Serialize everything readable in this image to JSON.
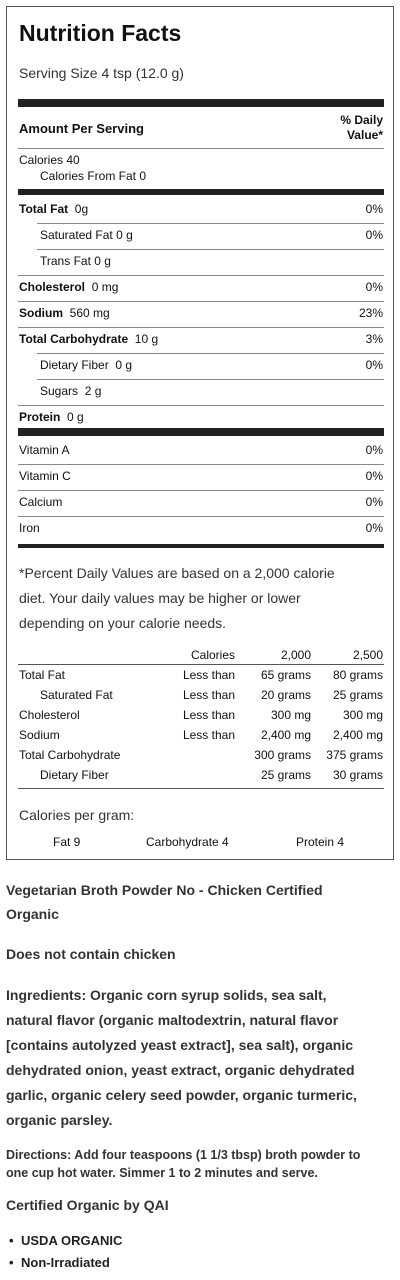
{
  "label": {
    "title": "Nutrition Facts",
    "serving_size": "Serving Size 4 tsp (12.0 g)",
    "amount_per_serving": "Amount Per Serving",
    "daily_value_header_1": "% Daily",
    "daily_value_header_2": "Value*",
    "calories": "Calories 40",
    "calories_from_fat": "Calories From Fat 0",
    "rows": [
      {
        "label": "Total Fat",
        "amount": "0g",
        "dv": "0%"
      },
      {
        "label": "Saturated Fat",
        "amount": "0 g",
        "dv": "0%"
      },
      {
        "label": "Trans Fat",
        "amount": "0 g",
        "dv": ""
      },
      {
        "label": "Cholesterol",
        "amount": "0 mg",
        "dv": "0%"
      },
      {
        "label": "Sodium",
        "amount": "560 mg",
        "dv": "23%"
      },
      {
        "label": "Total Carbohydrate",
        "amount": "10 g",
        "dv": "3%"
      },
      {
        "label": "Dietary Fiber",
        "amount": "0 g",
        "dv": "0%"
      },
      {
        "label": "Sugars",
        "amount": "2 g",
        "dv": ""
      },
      {
        "label": "Protein",
        "amount": "0 g",
        "dv": ""
      }
    ],
    "vitamins": [
      {
        "label": "Vitamin A",
        "dv": "0%"
      },
      {
        "label": "Vitamin C",
        "dv": "0%"
      },
      {
        "label": "Calcium",
        "dv": "0%"
      },
      {
        "label": "Iron",
        "dv": "0%"
      }
    ],
    "footnote": [
      "*Percent Daily Values are based on a 2,000 calorie",
      "diet. Your daily values may be higher or lower",
      "depending on your calorie needs."
    ],
    "footnote_table": {
      "header": [
        "Calories",
        "2,000",
        "2,500"
      ],
      "rows": [
        [
          "Total Fat",
          "Less than",
          "65 grams",
          "80 grams"
        ],
        [
          "Saturated Fat",
          "Less than",
          "20 grams",
          "25 grams"
        ],
        [
          "Cholesterol",
          "Less than",
          "300 mg",
          "300 mg"
        ],
        [
          "Sodium",
          "Less than",
          "2,400 mg",
          "2,400 mg"
        ],
        [
          "Total Carbohydrate",
          "",
          "300 grams",
          "375 grams"
        ],
        [
          "Dietary Fiber",
          "",
          "25 grams",
          "30 grams"
        ]
      ]
    },
    "calories_per_gram": "Calories per gram:",
    "per_gram": [
      "Fat 9",
      "Carbohydrate 4",
      "Protein 4"
    ]
  },
  "product": {
    "name_line1": "Vegetarian Broth Powder No - Chicken Certified",
    "name_line2": "Organic",
    "note": "Does not contain chicken",
    "ingredients": [
      "Ingredients: Organic corn syrup solids, sea salt,",
      "natural flavor (organic maltodextrin, natural flavor",
      "[contains autolyzed yeast extract], sea salt), organic",
      "dehydrated onion, yeast extract, organic dehydrated",
      "garlic, organic celery seed powder, organic turmeric,",
      "organic parsley."
    ],
    "directions": [
      "Directions: Add four teaspoons (1 1/3 tbsp) broth powder to",
      "one cup hot water. Simmer 1 to 2 minutes and serve."
    ],
    "certified": "Certified Organic by QAI",
    "bullets": [
      "USDA ORGANIC",
      "Non-Irradiated"
    ]
  }
}
